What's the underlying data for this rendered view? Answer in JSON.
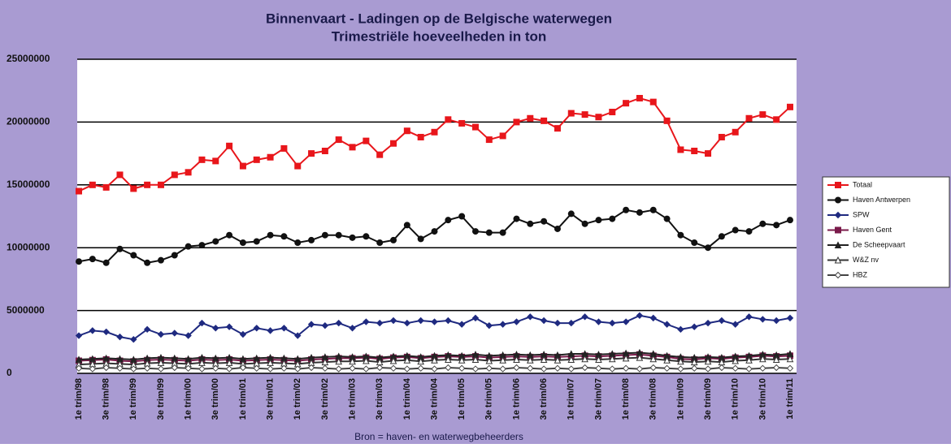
{
  "chart_data": {
    "type": "line",
    "title": "Binnenvaart - Ladingen op de Belgische waterwegen",
    "subtitle": "Trimestriële hoeveelheden in ton",
    "source": "Bron = haven- en waterwegbeheerders",
    "categories": [
      "1e trim/98",
      null,
      "3e trim/98",
      null,
      "1e trim/99",
      null,
      "3e trim/99",
      null,
      "1e trim/00",
      null,
      "3e trim/00",
      null,
      "1e trim/01",
      null,
      "3e trim/01",
      null,
      "1e trim/02",
      null,
      "3e trim/02",
      null,
      "1e trim/03",
      null,
      "3e trim/03",
      null,
      "1e trim/04",
      null,
      "3e trim/04",
      null,
      "1e trim/05",
      null,
      "3e trim/05",
      null,
      "1e trim/06",
      null,
      "3e trim/06",
      null,
      "1e trim/07",
      null,
      "3e trim/07",
      null,
      "1e trim/08",
      null,
      "3e trim/08",
      null,
      "1e trim/09",
      null,
      "3e trim/09",
      null,
      "1e trim/10",
      null,
      "3e trim/10",
      null,
      "1e trim/11"
    ],
    "ylim": [
      0,
      25000000
    ],
    "yticks": [
      0,
      5000000,
      10000000,
      15000000,
      20000000,
      25000000
    ],
    "grid": true,
    "legend": "right",
    "series": [
      {
        "name": "Totaal",
        "color": "#e8161b",
        "marker": "square",
        "values": [
          14500000,
          15000000,
          14800000,
          15800000,
          14700000,
          15000000,
          15000000,
          15800000,
          16000000,
          17000000,
          16900000,
          18100000,
          16500000,
          17000000,
          17200000,
          17900000,
          16500000,
          17500000,
          17700000,
          18600000,
          18000000,
          18500000,
          17400000,
          18300000,
          19300000,
          18800000,
          19200000,
          20200000,
          19900000,
          19600000,
          18600000,
          18900000,
          20000000,
          20300000,
          20100000,
          19500000,
          20700000,
          20600000,
          20400000,
          20800000,
          21500000,
          21900000,
          21600000,
          20100000,
          17800000,
          17700000,
          17500000,
          18800000,
          19200000,
          20300000,
          20600000,
          20200000,
          21200000
        ]
      },
      {
        "name": "Haven Antwerpen",
        "color": "#111111",
        "marker": "circle",
        "values": [
          8900000,
          9100000,
          8800000,
          9900000,
          9400000,
          8800000,
          9000000,
          9400000,
          10100000,
          10200000,
          10500000,
          11000000,
          10400000,
          10500000,
          11000000,
          10900000,
          10400000,
          10600000,
          11000000,
          11000000,
          10800000,
          10900000,
          10400000,
          10600000,
          11800000,
          10700000,
          11300000,
          12200000,
          12500000,
          11300000,
          11200000,
          11200000,
          12300000,
          11900000,
          12100000,
          11500000,
          12700000,
          11900000,
          12200000,
          12300000,
          13000000,
          12800000,
          13000000,
          12300000,
          11000000,
          10400000,
          10000000,
          10900000,
          11400000,
          11300000,
          11900000,
          11800000,
          12200000
        ]
      },
      {
        "name": "SPW",
        "color": "#1f2a80",
        "marker": "diamond",
        "values": [
          3000000,
          3400000,
          3300000,
          2900000,
          2700000,
          3500000,
          3100000,
          3200000,
          3000000,
          4000000,
          3600000,
          3700000,
          3100000,
          3600000,
          3400000,
          3600000,
          3000000,
          3900000,
          3800000,
          4000000,
          3600000,
          4100000,
          4000000,
          4200000,
          4000000,
          4200000,
          4100000,
          4200000,
          3900000,
          4400000,
          3800000,
          3900000,
          4100000,
          4500000,
          4200000,
          4000000,
          4000000,
          4500000,
          4100000,
          4000000,
          4100000,
          4600000,
          4400000,
          3900000,
          3500000,
          3700000,
          4000000,
          4200000,
          3900000,
          4500000,
          4300000,
          4200000,
          4400000
        ]
      },
      {
        "name": "Haven Gent",
        "color": "#7a1a4a",
        "marker": "square",
        "values": [
          1000000,
          1050000,
          1100000,
          1000000,
          950000,
          1050000,
          1100000,
          1050000,
          1000000,
          1100000,
          1050000,
          1100000,
          1000000,
          1050000,
          1100000,
          1050000,
          1000000,
          1100000,
          1150000,
          1200000,
          1200000,
          1250000,
          1150000,
          1250000,
          1300000,
          1200000,
          1300000,
          1350000,
          1300000,
          1350000,
          1250000,
          1300000,
          1350000,
          1300000,
          1350000,
          1300000,
          1350000,
          1400000,
          1350000,
          1400000,
          1450000,
          1500000,
          1400000,
          1300000,
          1150000,
          1100000,
          1200000,
          1150000,
          1250000,
          1300000,
          1400000,
          1350000,
          1400000
        ]
      },
      {
        "name": "De Scheepvaart",
        "color": "#222222",
        "marker": "triangle",
        "values": [
          1100000,
          1150000,
          1200000,
          1150000,
          1100000,
          1200000,
          1250000,
          1200000,
          1150000,
          1250000,
          1200000,
          1250000,
          1150000,
          1200000,
          1250000,
          1200000,
          1150000,
          1250000,
          1300000,
          1350000,
          1300000,
          1350000,
          1250000,
          1350000,
          1400000,
          1300000,
          1400000,
          1450000,
          1400000,
          1500000,
          1400000,
          1450000,
          1500000,
          1450000,
          1500000,
          1450000,
          1550000,
          1550000,
          1500000,
          1550000,
          1600000,
          1650000,
          1550000,
          1400000,
          1300000,
          1250000,
          1300000,
          1250000,
          1350000,
          1400000,
          1500000,
          1450000,
          1550000
        ]
      },
      {
        "name": "W&Z nv",
        "color": "#333333",
        "marker": "open-triangle",
        "values": [
          700000,
          750000,
          800000,
          750000,
          700000,
          800000,
          850000,
          800000,
          750000,
          850000,
          800000,
          850000,
          750000,
          800000,
          850000,
          800000,
          750000,
          850000,
          900000,
          950000,
          950000,
          1000000,
          900000,
          1000000,
          1050000,
          950000,
          1050000,
          1100000,
          1050000,
          1100000,
          1000000,
          1050000,
          1100000,
          1050000,
          1100000,
          1050000,
          1100000,
          1150000,
          1100000,
          1150000,
          1200000,
          1250000,
          1150000,
          1050000,
          950000,
          900000,
          950000,
          900000,
          1000000,
          1050000,
          1150000,
          1100000,
          1150000
        ]
      },
      {
        "name": "HBZ",
        "color": "#444444",
        "marker": "open-diamond",
        "values": [
          400000,
          350000,
          450000,
          400000,
          350000,
          400000,
          350000,
          450000,
          400000,
          350000,
          400000,
          350000,
          450000,
          400000,
          350000,
          400000,
          350000,
          450000,
          400000,
          350000,
          400000,
          350000,
          450000,
          400000,
          350000,
          400000,
          350000,
          450000,
          400000,
          350000,
          400000,
          350000,
          450000,
          400000,
          350000,
          400000,
          350000,
          450000,
          400000,
          350000,
          400000,
          350000,
          450000,
          400000,
          350000,
          400000,
          350000,
          450000,
          400000,
          350000,
          400000,
          450000,
          400000
        ]
      }
    ]
  }
}
